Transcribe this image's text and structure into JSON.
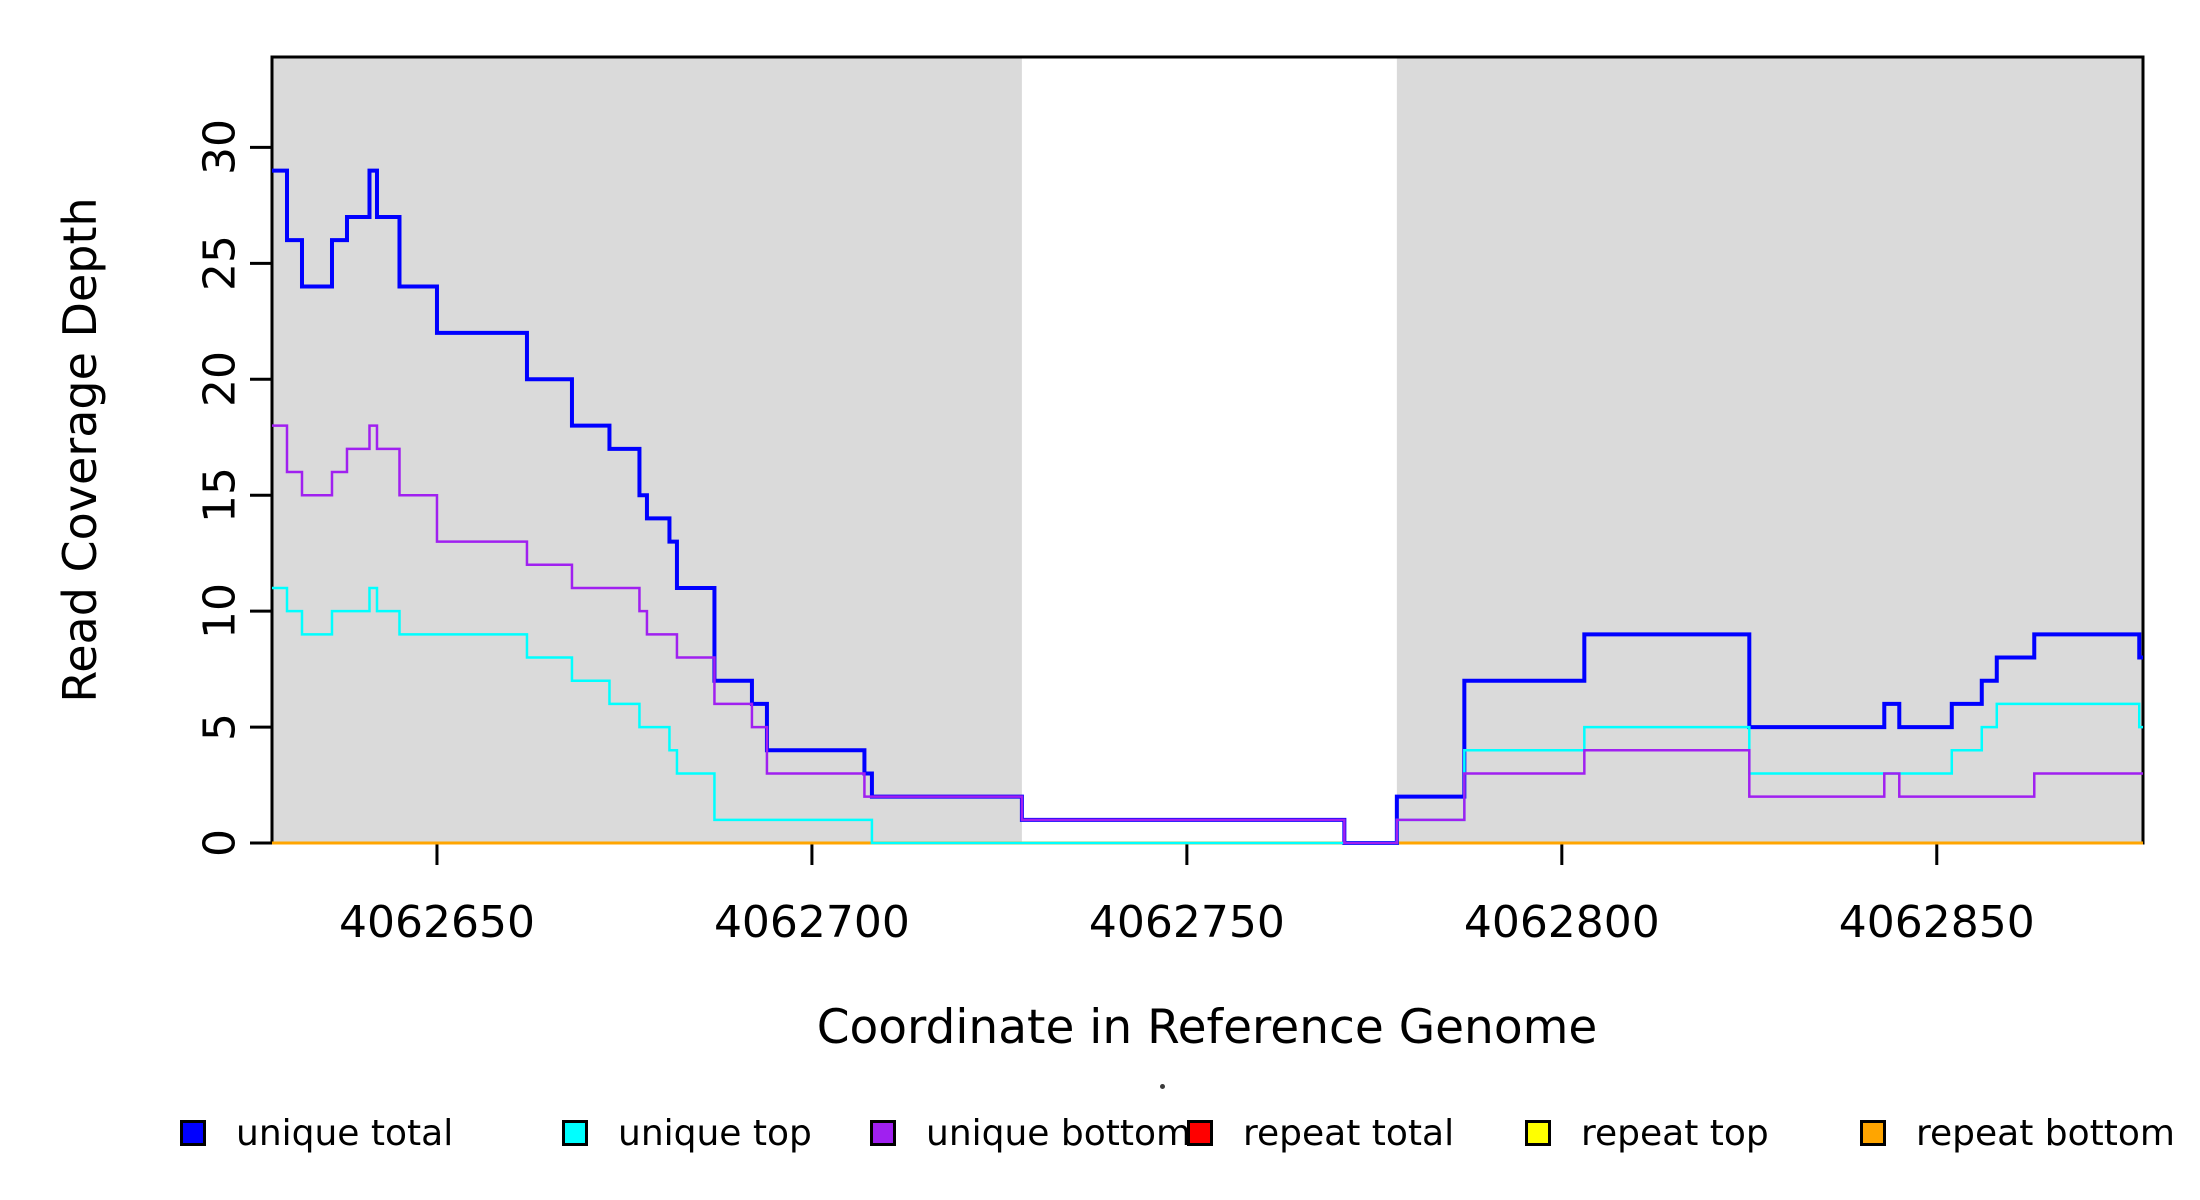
{
  "figure": {
    "x_axis": {
      "label": "Coordinate in Reference Genome",
      "ticks": [
        "4062650",
        "4062700",
        "4062750",
        "4062800",
        "4062850"
      ],
      "tick_values": [
        4062650,
        4062700,
        4062750,
        4062800,
        4062850
      ]
    },
    "y_axis": {
      "label": "Read Coverage Depth",
      "ticks": [
        "0",
        "5",
        "10",
        "15",
        "20",
        "25",
        "30"
      ],
      "tick_values": [
        0,
        5,
        10,
        15,
        20,
        25,
        30
      ]
    }
  },
  "legend": {
    "items": [
      {
        "label": "unique total",
        "color": "#0000FF"
      },
      {
        "label": "unique top",
        "color": "#00FFFF"
      },
      {
        "label": "unique bottom",
        "color": "#A020F0"
      },
      {
        "label": "repeat total",
        "color": "#FF0000"
      },
      {
        "label": "repeat top",
        "color": "#FFFF00"
      },
      {
        "label": "repeat bottom",
        "color": "#FFA500"
      }
    ]
  },
  "chart_data": {
    "type": "line",
    "title": "",
    "xlabel": "Coordinate in Reference Genome",
    "ylabel": "Read Coverage Depth",
    "step_style": true,
    "grid": false,
    "legend_position": "bottom",
    "xlim": [
      4062628,
      4062877.5
    ],
    "ylim": [
      0,
      33.9
    ],
    "shade_color": "#DADADA",
    "shaded_regions": [
      [
        4062628,
        4062728
      ],
      [
        4062778,
        4062877.5
      ]
    ],
    "x_breakpoints": [
      4062628,
      4062630,
      4062632,
      4062636,
      4062638,
      4062641,
      4062642,
      4062645,
      4062650,
      4062662,
      4062668,
      4062673,
      4062677,
      4062678,
      4062681,
      4062682,
      4062687,
      4062692,
      4062694,
      4062707,
      4062708,
      4062728,
      4062771,
      4062778,
      4062787,
      4062803,
      4062825,
      4062843,
      4062845,
      4062852,
      4062856,
      4062858,
      4062863,
      4062877,
      4062877.5
    ],
    "series": [
      {
        "name": "repeat total",
        "color": "#FF0000",
        "width": 3,
        "values": [
          0,
          0,
          0,
          0,
          0,
          0,
          0,
          0,
          0,
          0,
          0,
          0,
          0,
          0,
          0,
          0,
          0,
          0,
          0,
          0,
          0,
          0,
          0,
          0,
          0,
          0,
          0,
          0,
          0,
          0,
          0,
          0,
          0,
          0
        ]
      },
      {
        "name": "repeat top",
        "color": "#FFFF00",
        "width": 3,
        "values": [
          0,
          0,
          0,
          0,
          0,
          0,
          0,
          0,
          0,
          0,
          0,
          0,
          0,
          0,
          0,
          0,
          0,
          0,
          0,
          0,
          0,
          0,
          0,
          0,
          0,
          0,
          0,
          0,
          0,
          0,
          0,
          0,
          0,
          0
        ]
      },
      {
        "name": "repeat bottom",
        "color": "#FFA500",
        "width": 3,
        "values": [
          0,
          0,
          0,
          0,
          0,
          0,
          0,
          0,
          0,
          0,
          0,
          0,
          0,
          0,
          0,
          0,
          0,
          0,
          0,
          0,
          0,
          0,
          0,
          0,
          0,
          0,
          0,
          0,
          0,
          0,
          0,
          0,
          0,
          0
        ]
      },
      {
        "name": "unique total",
        "color": "#0000FF",
        "width": 4,
        "values": [
          29,
          26,
          24,
          26,
          27,
          29,
          27,
          24,
          22,
          20,
          18,
          17,
          15,
          14,
          13,
          11,
          7,
          6,
          4,
          3,
          2,
          1,
          0,
          2,
          7,
          9,
          5,
          6,
          5,
          6,
          7,
          8,
          9,
          8
        ]
      },
      {
        "name": "unique top",
        "color": "#00FFFF",
        "width": 2.5,
        "values": [
          11,
          10,
          9,
          10,
          10,
          11,
          10,
          9,
          9,
          8,
          7,
          6,
          5,
          5,
          4,
          3,
          1,
          1,
          1,
          1,
          0,
          0,
          0,
          1,
          4,
          5,
          3,
          3,
          3,
          4,
          5,
          6,
          6,
          5
        ]
      },
      {
        "name": "unique bottom",
        "color": "#A020F0",
        "width": 2.5,
        "values": [
          18,
          16,
          15,
          16,
          17,
          18,
          17,
          15,
          13,
          12,
          11,
          11,
          10,
          9,
          9,
          8,
          6,
          5,
          3,
          2,
          2,
          1,
          0,
          1,
          3,
          4,
          2,
          3,
          2,
          2,
          2,
          2,
          3,
          3
        ]
      }
    ]
  }
}
